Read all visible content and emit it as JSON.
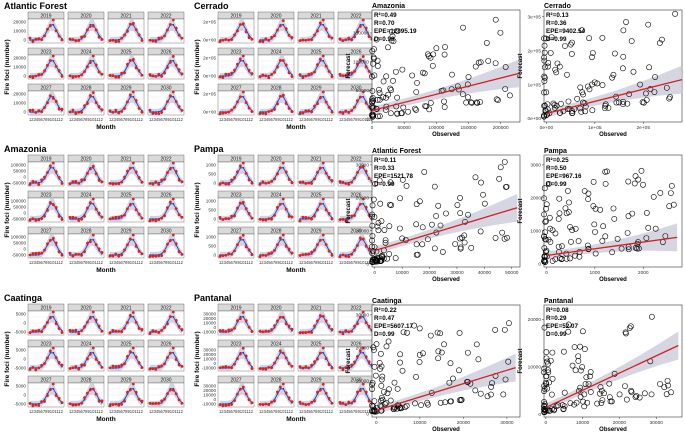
{
  "years_grid": [
    [
      "2019",
      "2020",
      "2021",
      "2022"
    ],
    [
      "2023",
      "2024",
      "2025",
      "2026"
    ],
    [
      "2027",
      "2028",
      "2029",
      "2030"
    ]
  ],
  "month_tick_text": "123456789101112",
  "month_xlabel": "Month",
  "forecast_ylabel": "Fire foci (number)",
  "scatter_xlabel": "Observed",
  "scatter_ylabel": "Forecast",
  "colors": {
    "observed": "#e02020",
    "forecast": "#2a3fc0",
    "ci": "#c8c8d8",
    "fit": "#d42020",
    "strip": "#d9d9d9"
  },
  "chart_data": [
    {
      "type": "line",
      "title": "Atlantic Forest",
      "y_ticks": [
        "20000",
        "10000",
        "0"
      ],
      "peak": 20000,
      "series": [
        {
          "name": "Observed",
          "values": []
        },
        {
          "name": "Forecast",
          "values": []
        }
      ]
    },
    {
      "type": "line",
      "title": "Cerrado",
      "y_ticks": [
        "2e+05",
        "0e+00"
      ],
      "peak": 200000
    },
    {
      "type": "line",
      "title": "Amazonia",
      "y_ticks": [
        "100000",
        "50000",
        "0",
        "-50000"
      ],
      "peak": 100000
    },
    {
      "type": "line",
      "title": "Pampa",
      "y_ticks": [
        "1000",
        "500",
        "0"
      ],
      "peak": 800
    },
    {
      "type": "line",
      "title": "Caatinga",
      "y_ticks": [
        "5000",
        "0",
        "-5000"
      ],
      "peak": 10000
    },
    {
      "type": "line",
      "title": "Pantanal",
      "y_ticks": [
        "30000",
        "20000",
        "10000",
        "0",
        "-10000"
      ],
      "peak": 30000
    },
    {
      "type": "scatter",
      "title": "Amazonia",
      "stats": [
        "R²=0.49",
        "R=0.70",
        "EPE=12895.19",
        "D=0.99"
      ],
      "x_ticks": [
        "0",
        "50000",
        "100000",
        "150000",
        "200000"
      ],
      "y_ticks": [
        "150000",
        "100000",
        "50000",
        "0"
      ],
      "xlim": [
        0,
        230000
      ],
      "ylim": [
        -5000,
        190000
      ],
      "fit": [
        [
          0,
          15000
        ],
        [
          230000,
          80000
        ]
      ]
    },
    {
      "type": "scatter",
      "title": "Cerrado",
      "stats": [
        "R²=0.13",
        "R=0.36",
        "EPE=9402.54",
        "D=0.99"
      ],
      "x_ticks": [
        "0e+00",
        "1e+05",
        "2e+05"
      ],
      "y_ticks": [
        "3e+05",
        "2e+05",
        "1e+05",
        "0e+00"
      ],
      "xlim": [
        -5000,
        280000
      ],
      "ylim": [
        -10000,
        320000
      ],
      "fit": [
        [
          0,
          15000
        ],
        [
          280000,
          115000
        ]
      ]
    },
    {
      "type": "scatter",
      "title": "Atlantic Forest",
      "stats": [
        "R²=0.11",
        "R=0.33",
        "EPE=1521.78",
        "D=0.99"
      ],
      "x_ticks": [
        "0",
        "10000",
        "20000",
        "30000",
        "40000",
        "50000"
      ],
      "y_ticks": [
        "30000",
        "20000",
        "10000",
        "0"
      ],
      "xlim": [
        -1000,
        53000
      ],
      "ylim": [
        -1000,
        33000
      ],
      "fit": [
        [
          0,
          4000
        ],
        [
          52000,
          17000
        ]
      ]
    },
    {
      "type": "scatter",
      "title": "Pampa",
      "stats": [
        "R²=0.25",
        "R=0.50",
        "EPE=967.16",
        "D=0.99"
      ],
      "x_ticks": [
        "0",
        "1000",
        "2000"
      ],
      "y_ticks": [
        "3000",
        "2000",
        "1000",
        "0"
      ],
      "xlim": [
        -50,
        2800
      ],
      "ylim": [
        -100,
        3300
      ],
      "fit": [
        [
          0,
          250
        ],
        [
          2700,
          800
        ]
      ]
    },
    {
      "type": "scatter",
      "title": "Caatinga",
      "stats": [
        "R²=0.22",
        "R=0.47",
        "EPE=5607.17",
        "D=0.99"
      ],
      "x_ticks": [
        "0",
        "10000",
        "20000",
        "30000"
      ],
      "y_ticks": [
        "30000",
        "20000",
        "10000",
        "0"
      ],
      "xlim": [
        -1000,
        33000
      ],
      "ylim": [
        -1000,
        33000
      ],
      "fit": [
        [
          0,
          1000
        ],
        [
          32000,
          14000
        ]
      ]
    },
    {
      "type": "scatter",
      "title": "Pantanal",
      "stats": [
        "R²=0.08",
        "R=0.29",
        "EPE=52.07",
        "D=0.99"
      ],
      "x_ticks": [
        "0",
        "10000",
        "20000",
        "30000"
      ],
      "y_ticks": [
        "20000",
        "10000",
        "0"
      ],
      "xlim": [
        -500,
        37000
      ],
      "ylim": [
        -500,
        23000
      ],
      "fit": [
        [
          0,
          1500
        ],
        [
          36000,
          14500
        ]
      ]
    }
  ]
}
